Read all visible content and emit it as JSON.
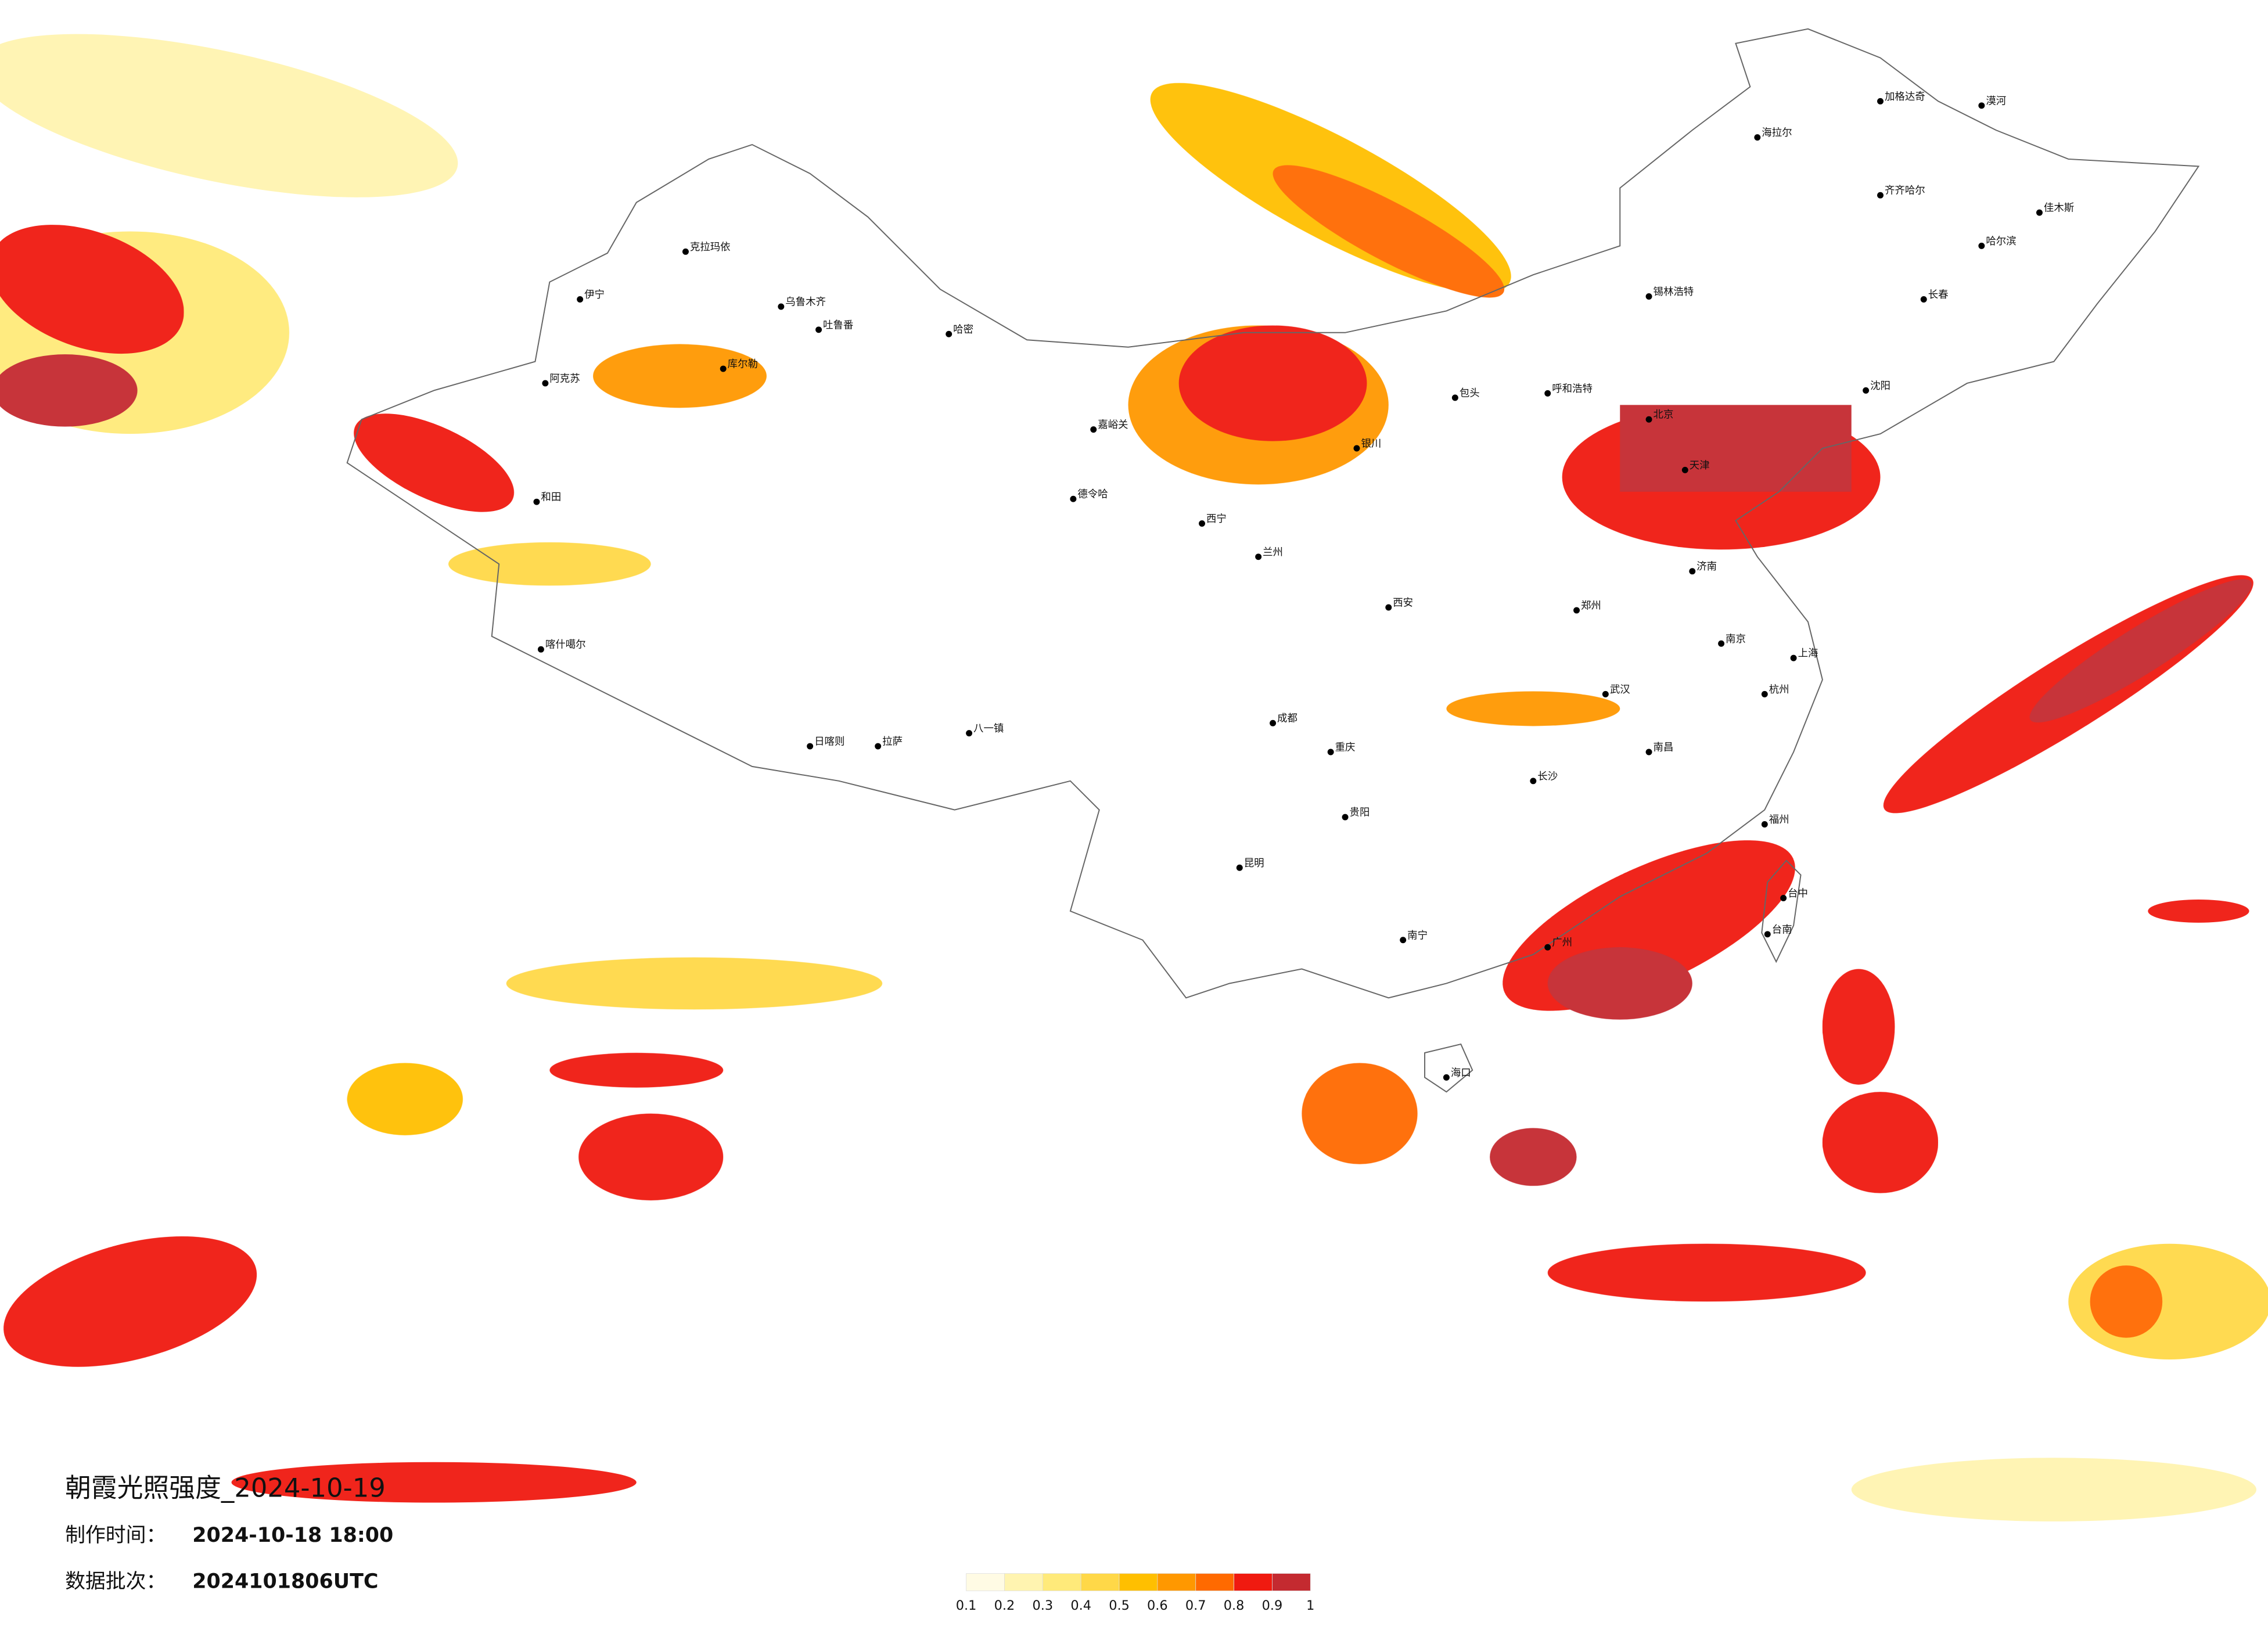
{
  "title": "朝霞光照强度_2024-10-19",
  "made_time": {
    "label": "制作时间：",
    "value": "2024-10-18 18:00"
  },
  "batch": {
    "label": "数据批次：",
    "value": "2024101806UTC"
  },
  "legend": {
    "colors": [
      "#fffbe4",
      "#fff4b0",
      "#ffea7a",
      "#ffd848",
      "#ffbf00",
      "#ff9800",
      "#ff6a00",
      "#f01a10",
      "#c42a30"
    ],
    "ticks": [
      0.1,
      0.2,
      0.3,
      0.4,
      0.5,
      0.6,
      0.7,
      0.8,
      0.9,
      1
    ]
  },
  "cities": [
    "克拉玛依",
    "伊宁",
    "乌鲁木齐",
    "吐鲁番",
    "哈密",
    "库尔勒",
    "阿克苏",
    "和田",
    "喀什噶尔",
    "日喀则",
    "拉萨",
    "八一镇",
    "德令哈",
    "嘉峪关",
    "西宁",
    "兰州",
    "银川",
    "呼和浩特",
    "包头",
    "锡林浩特",
    "海拉尔",
    "加格达奇",
    "漠河",
    "齐齐哈尔",
    "哈尔滨",
    "佳木斯",
    "长春",
    "沈阳",
    "北京",
    "天津",
    "济南",
    "郑州",
    "西安",
    "成都",
    "重庆",
    "贵阳",
    "昆明",
    "南宁",
    "广州",
    "武汉",
    "长沙",
    "南昌",
    "南京",
    "杭州",
    "上海",
    "福州",
    "台中",
    "台南",
    "海口"
  ]
}
